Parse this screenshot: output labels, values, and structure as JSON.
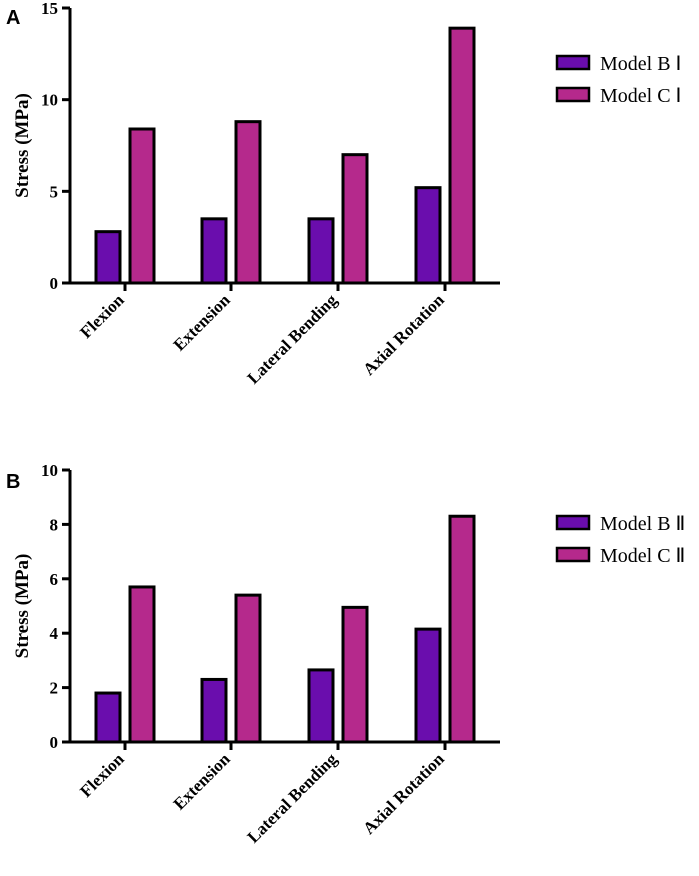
{
  "chart_data": [
    {
      "panel": "A",
      "type": "bar",
      "title": "",
      "xlabel": "",
      "ylabel": "Stress (MPa)",
      "ylim": [
        0,
        15
      ],
      "yticks": [
        0,
        5,
        10,
        15
      ],
      "grid": false,
      "legend_position": "right",
      "categories": [
        "Flexion",
        "Extension",
        "Lateral Bending",
        "Axial Rotation"
      ],
      "series": [
        {
          "name": "Model B Ⅰ",
          "color": "#6a0dad",
          "values": [
            2.8,
            3.5,
            3.5,
            5.2
          ]
        },
        {
          "name": "Model C Ⅰ",
          "color": "#b5298c",
          "values": [
            8.4,
            8.8,
            7.0,
            13.9
          ]
        }
      ]
    },
    {
      "panel": "B",
      "type": "bar",
      "title": "",
      "xlabel": "",
      "ylabel": "Stress (MPa)",
      "ylim": [
        0,
        10
      ],
      "yticks": [
        0,
        2,
        4,
        6,
        8,
        10
      ],
      "grid": false,
      "legend_position": "right",
      "categories": [
        "Flexion",
        "Extension",
        "Lateral Bending",
        "Axial Rotation"
      ],
      "series": [
        {
          "name": "Model B Ⅱ",
          "color": "#6a0dad",
          "values": [
            1.8,
            2.3,
            2.65,
            4.15
          ]
        },
        {
          "name": "Model C Ⅱ",
          "color": "#b5298c",
          "values": [
            5.7,
            5.4,
            4.95,
            8.3
          ]
        }
      ]
    }
  ]
}
